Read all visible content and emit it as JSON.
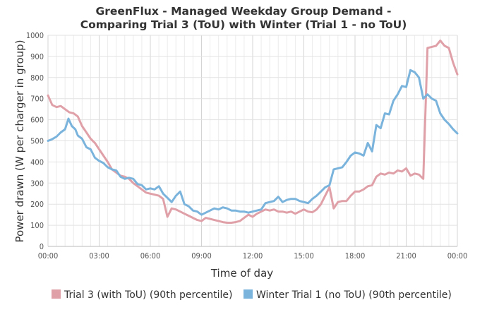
{
  "chart_data": {
    "type": "line",
    "title_line1": "GreenFlux - Managed Weekday Group Demand -",
    "title_line2": "Comparing Trial 3 (ToU) with Winter (Trial 1 - no ToU)",
    "xlabel": "Time of day",
    "ylabel": "Power drawn (W per charger in group)",
    "xlim": [
      0,
      24
    ],
    "ylim": [
      0,
      1000
    ],
    "x_ticks": [
      "00:00",
      "03:00",
      "06:00",
      "09:00",
      "12:00",
      "15:00",
      "18:00",
      "21:00",
      "00:00"
    ],
    "y_ticks": [
      "0",
      "100",
      "200",
      "300",
      "400",
      "500",
      "600",
      "700",
      "800",
      "900",
      "1000"
    ],
    "grid": true,
    "legend_position": "bottom",
    "series": [
      {
        "name": "Trial 3 (with ToU) (90th percentile)",
        "color": "#e0a0a8",
        "points": [
          [
            0,
            715
          ],
          [
            0.25,
            670
          ],
          [
            0.5,
            660
          ],
          [
            0.75,
            665
          ],
          [
            1,
            650
          ],
          [
            1.25,
            635
          ],
          [
            1.5,
            630
          ],
          [
            1.75,
            615
          ],
          [
            2,
            570
          ],
          [
            2.25,
            540
          ],
          [
            2.5,
            510
          ],
          [
            2.75,
            490
          ],
          [
            3,
            460
          ],
          [
            3.25,
            430
          ],
          [
            3.5,
            400
          ],
          [
            3.75,
            365
          ],
          [
            4,
            350
          ],
          [
            4.25,
            335
          ],
          [
            4.5,
            330
          ],
          [
            4.75,
            320
          ],
          [
            5,
            300
          ],
          [
            5.25,
            285
          ],
          [
            5.5,
            270
          ],
          [
            5.75,
            255
          ],
          [
            6,
            250
          ],
          [
            6.25,
            245
          ],
          [
            6.5,
            240
          ],
          [
            6.75,
            225
          ],
          [
            7,
            140
          ],
          [
            7.25,
            180
          ],
          [
            7.5,
            175
          ],
          [
            7.75,
            165
          ],
          [
            8,
            155
          ],
          [
            8.25,
            145
          ],
          [
            8.5,
            135
          ],
          [
            8.75,
            125
          ],
          [
            9,
            120
          ],
          [
            9.25,
            135
          ],
          [
            9.5,
            130
          ],
          [
            9.75,
            125
          ],
          [
            10,
            120
          ],
          [
            10.25,
            115
          ],
          [
            10.5,
            112
          ],
          [
            10.75,
            112
          ],
          [
            11,
            115
          ],
          [
            11.25,
            120
          ],
          [
            11.5,
            135
          ],
          [
            11.75,
            150
          ],
          [
            12,
            140
          ],
          [
            12.25,
            155
          ],
          [
            12.5,
            165
          ],
          [
            12.75,
            175
          ],
          [
            13,
            170
          ],
          [
            13.25,
            175
          ],
          [
            13.5,
            165
          ],
          [
            13.75,
            165
          ],
          [
            14,
            160
          ],
          [
            14.25,
            165
          ],
          [
            14.5,
            155
          ],
          [
            14.75,
            165
          ],
          [
            15,
            175
          ],
          [
            15.25,
            165
          ],
          [
            15.5,
            162
          ],
          [
            15.75,
            175
          ],
          [
            16,
            200
          ],
          [
            16.25,
            240
          ],
          [
            16.5,
            280
          ],
          [
            16.75,
            180
          ],
          [
            17,
            210
          ],
          [
            17.25,
            215
          ],
          [
            17.5,
            215
          ],
          [
            17.75,
            240
          ],
          [
            18,
            260
          ],
          [
            18.25,
            260
          ],
          [
            18.5,
            270
          ],
          [
            18.75,
            285
          ],
          [
            19,
            290
          ],
          [
            19.25,
            330
          ],
          [
            19.5,
            345
          ],
          [
            19.75,
            340
          ],
          [
            20,
            350
          ],
          [
            20.25,
            345
          ],
          [
            20.5,
            360
          ],
          [
            20.75,
            355
          ],
          [
            21,
            370
          ],
          [
            21.25,
            335
          ],
          [
            21.5,
            345
          ],
          [
            21.75,
            340
          ],
          [
            22,
            320
          ],
          [
            22.25,
            940
          ],
          [
            22.5,
            945
          ],
          [
            22.75,
            950
          ],
          [
            23,
            975
          ],
          [
            23.25,
            950
          ],
          [
            23.5,
            940
          ],
          [
            23.75,
            870
          ],
          [
            24,
            815
          ]
        ]
      },
      {
        "name": "Winter Trial 1 (no ToU) (90th percentile)",
        "color": "#7ab3dc",
        "points": [
          [
            0,
            500
          ],
          [
            0.25,
            508
          ],
          [
            0.5,
            520
          ],
          [
            0.75,
            540
          ],
          [
            1,
            555
          ],
          [
            1.2,
            605
          ],
          [
            1.4,
            570
          ],
          [
            1.6,
            555
          ],
          [
            1.75,
            525
          ],
          [
            2,
            510
          ],
          [
            2.25,
            470
          ],
          [
            2.5,
            460
          ],
          [
            2.75,
            420
          ],
          [
            3,
            405
          ],
          [
            3.25,
            395
          ],
          [
            3.5,
            375
          ],
          [
            3.75,
            365
          ],
          [
            4,
            360
          ],
          [
            4.25,
            330
          ],
          [
            4.5,
            320
          ],
          [
            4.75,
            325
          ],
          [
            5,
            320
          ],
          [
            5.25,
            295
          ],
          [
            5.5,
            290
          ],
          [
            5.75,
            270
          ],
          [
            6,
            275
          ],
          [
            6.25,
            270
          ],
          [
            6.5,
            285
          ],
          [
            6.75,
            250
          ],
          [
            7,
            230
          ],
          [
            7.25,
            210
          ],
          [
            7.5,
            240
          ],
          [
            7.75,
            260
          ],
          [
            8,
            200
          ],
          [
            8.25,
            190
          ],
          [
            8.5,
            170
          ],
          [
            8.75,
            165
          ],
          [
            9,
            150
          ],
          [
            9.25,
            160
          ],
          [
            9.5,
            170
          ],
          [
            9.75,
            180
          ],
          [
            10,
            175
          ],
          [
            10.25,
            185
          ],
          [
            10.5,
            180
          ],
          [
            10.75,
            170
          ],
          [
            11,
            170
          ],
          [
            11.25,
            165
          ],
          [
            11.5,
            165
          ],
          [
            11.75,
            160
          ],
          [
            12,
            165
          ],
          [
            12.25,
            170
          ],
          [
            12.5,
            175
          ],
          [
            12.75,
            205
          ],
          [
            13,
            210
          ],
          [
            13.25,
            215
          ],
          [
            13.5,
            235
          ],
          [
            13.75,
            210
          ],
          [
            14,
            220
          ],
          [
            14.25,
            225
          ],
          [
            14.5,
            225
          ],
          [
            14.75,
            215
          ],
          [
            15,
            210
          ],
          [
            15.25,
            205
          ],
          [
            15.5,
            225
          ],
          [
            15.75,
            240
          ],
          [
            16,
            260
          ],
          [
            16.25,
            280
          ],
          [
            16.5,
            290
          ],
          [
            16.75,
            365
          ],
          [
            17,
            370
          ],
          [
            17.25,
            375
          ],
          [
            17.5,
            400
          ],
          [
            17.75,
            430
          ],
          [
            18,
            445
          ],
          [
            18.25,
            440
          ],
          [
            18.5,
            430
          ],
          [
            18.75,
            490
          ],
          [
            19,
            450
          ],
          [
            19.25,
            575
          ],
          [
            19.5,
            560
          ],
          [
            19.75,
            630
          ],
          [
            20,
            625
          ],
          [
            20.25,
            690
          ],
          [
            20.5,
            720
          ],
          [
            20.75,
            760
          ],
          [
            21,
            755
          ],
          [
            21.25,
            835
          ],
          [
            21.5,
            825
          ],
          [
            21.75,
            800
          ],
          [
            22,
            700
          ],
          [
            22.25,
            720
          ],
          [
            22.5,
            700
          ],
          [
            22.75,
            690
          ],
          [
            23,
            630
          ],
          [
            23.25,
            600
          ],
          [
            23.5,
            580
          ],
          [
            23.75,
            555
          ],
          [
            24,
            535
          ]
        ]
      }
    ]
  }
}
